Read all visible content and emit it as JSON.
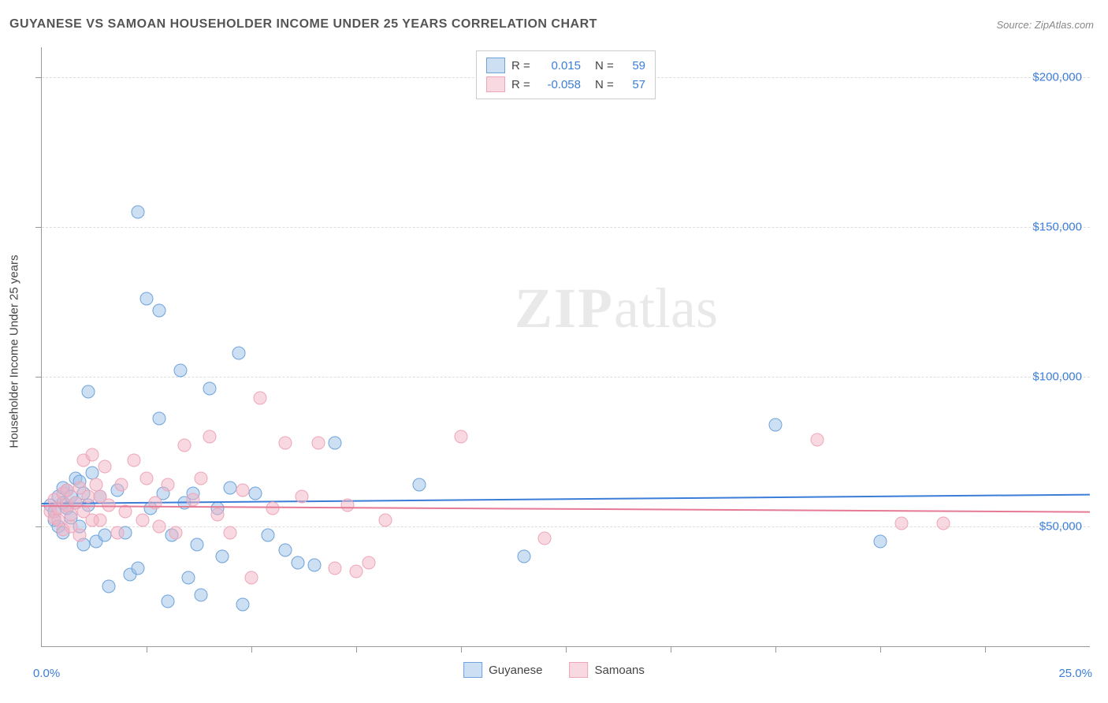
{
  "title": "GUYANESE VS SAMOAN HOUSEHOLDER INCOME UNDER 25 YEARS CORRELATION CHART",
  "source": "Source: ZipAtlas.com",
  "watermark_zip": "ZIP",
  "watermark_atlas": "atlas",
  "chart": {
    "type": "scatter",
    "background_color": "#ffffff",
    "grid_color": "#dddddd",
    "axis_color": "#999999",
    "y_axis_label": "Householder Income Under 25 years",
    "x_axis": {
      "min": 0.0,
      "max": 25.0,
      "label_left": "0.0%",
      "label_right": "25.0%",
      "label_color": "#3b7dd8",
      "tick_positions_pct": [
        10,
        20,
        30,
        40,
        50,
        60,
        70,
        80,
        90
      ]
    },
    "y_axis": {
      "min": 10000,
      "max": 210000,
      "label_color": "#3b7dd8",
      "ticks": [
        {
          "value": 50000,
          "label": "$50,000"
        },
        {
          "value": 100000,
          "label": "$100,000"
        },
        {
          "value": 150000,
          "label": "$150,000"
        },
        {
          "value": 200000,
          "label": "$200,000"
        }
      ]
    },
    "series": [
      {
        "name": "Guyanese",
        "fill_color": "rgba(155,192,232,0.5)",
        "stroke_color": "#6ea3db",
        "marker_size": 17,
        "trend_color": "#3b7dd8",
        "r_label": "R =",
        "r_value": "0.015",
        "n_label": "N =",
        "n_value": "59",
        "trend": {
          "y_at_xmin": 58000,
          "y_at_xmax": 61000
        },
        "points": [
          {
            "x": 0.2,
            "y": 57000
          },
          {
            "x": 0.3,
            "y": 55000
          },
          {
            "x": 0.3,
            "y": 52000
          },
          {
            "x": 0.4,
            "y": 60000
          },
          {
            "x": 0.4,
            "y": 50000
          },
          {
            "x": 0.5,
            "y": 63000
          },
          {
            "x": 0.5,
            "y": 58000
          },
          {
            "x": 0.5,
            "y": 48000
          },
          {
            "x": 0.6,
            "y": 62000
          },
          {
            "x": 0.6,
            "y": 56000
          },
          {
            "x": 0.7,
            "y": 60000
          },
          {
            "x": 0.7,
            "y": 53000
          },
          {
            "x": 0.8,
            "y": 66000
          },
          {
            "x": 0.8,
            "y": 58000
          },
          {
            "x": 0.9,
            "y": 65000
          },
          {
            "x": 0.9,
            "y": 50000
          },
          {
            "x": 1.0,
            "y": 61000
          },
          {
            "x": 1.0,
            "y": 44000
          },
          {
            "x": 1.1,
            "y": 95000
          },
          {
            "x": 1.1,
            "y": 57000
          },
          {
            "x": 1.2,
            "y": 68000
          },
          {
            "x": 1.3,
            "y": 45000
          },
          {
            "x": 1.4,
            "y": 60000
          },
          {
            "x": 1.5,
            "y": 47000
          },
          {
            "x": 1.6,
            "y": 30000
          },
          {
            "x": 1.8,
            "y": 62000
          },
          {
            "x": 2.0,
            "y": 48000
          },
          {
            "x": 2.1,
            "y": 34000
          },
          {
            "x": 2.3,
            "y": 155000
          },
          {
            "x": 2.3,
            "y": 36000
          },
          {
            "x": 2.5,
            "y": 126000
          },
          {
            "x": 2.6,
            "y": 56000
          },
          {
            "x": 2.8,
            "y": 122000
          },
          {
            "x": 2.8,
            "y": 86000
          },
          {
            "x": 2.9,
            "y": 61000
          },
          {
            "x": 3.0,
            "y": 25000
          },
          {
            "x": 3.1,
            "y": 47000
          },
          {
            "x": 3.3,
            "y": 102000
          },
          {
            "x": 3.4,
            "y": 58000
          },
          {
            "x": 3.5,
            "y": 33000
          },
          {
            "x": 3.6,
            "y": 61000
          },
          {
            "x": 3.7,
            "y": 44000
          },
          {
            "x": 3.8,
            "y": 27000
          },
          {
            "x": 4.0,
            "y": 96000
          },
          {
            "x": 4.2,
            "y": 56000
          },
          {
            "x": 4.3,
            "y": 40000
          },
          {
            "x": 4.5,
            "y": 63000
          },
          {
            "x": 4.7,
            "y": 108000
          },
          {
            "x": 4.8,
            "y": 24000
          },
          {
            "x": 5.1,
            "y": 61000
          },
          {
            "x": 5.4,
            "y": 47000
          },
          {
            "x": 5.8,
            "y": 42000
          },
          {
            "x": 6.1,
            "y": 38000
          },
          {
            "x": 6.5,
            "y": 37000
          },
          {
            "x": 7.0,
            "y": 78000
          },
          {
            "x": 9.0,
            "y": 64000
          },
          {
            "x": 11.5,
            "y": 40000
          },
          {
            "x": 17.5,
            "y": 84000
          },
          {
            "x": 20.0,
            "y": 45000
          }
        ]
      },
      {
        "name": "Samoans",
        "fill_color": "rgba(244,180,196,0.5)",
        "stroke_color": "#eda6b8",
        "marker_size": 17,
        "trend_color": "#e57a95",
        "r_label": "R =",
        "r_value": "-0.058",
        "n_label": "N =",
        "n_value": "57",
        "trend": {
          "y_at_xmin": 57000,
          "y_at_xmax": 55000
        },
        "points": [
          {
            "x": 0.2,
            "y": 55000
          },
          {
            "x": 0.3,
            "y": 53000
          },
          {
            "x": 0.3,
            "y": 59000
          },
          {
            "x": 0.4,
            "y": 52000
          },
          {
            "x": 0.4,
            "y": 56000
          },
          {
            "x": 0.5,
            "y": 61000
          },
          {
            "x": 0.5,
            "y": 49000
          },
          {
            "x": 0.6,
            "y": 57000
          },
          {
            "x": 0.6,
            "y": 62000
          },
          {
            "x": 0.7,
            "y": 54000
          },
          {
            "x": 0.7,
            "y": 50000
          },
          {
            "x": 0.8,
            "y": 58000
          },
          {
            "x": 0.9,
            "y": 63000
          },
          {
            "x": 0.9,
            "y": 47000
          },
          {
            "x": 1.0,
            "y": 72000
          },
          {
            "x": 1.0,
            "y": 55000
          },
          {
            "x": 1.1,
            "y": 60000
          },
          {
            "x": 1.2,
            "y": 74000
          },
          {
            "x": 1.3,
            "y": 64000
          },
          {
            "x": 1.4,
            "y": 52000
          },
          {
            "x": 1.5,
            "y": 70000
          },
          {
            "x": 1.6,
            "y": 57000
          },
          {
            "x": 1.8,
            "y": 48000
          },
          {
            "x": 1.9,
            "y": 64000
          },
          {
            "x": 2.0,
            "y": 55000
          },
          {
            "x": 2.2,
            "y": 72000
          },
          {
            "x": 2.4,
            "y": 52000
          },
          {
            "x": 2.5,
            "y": 66000
          },
          {
            "x": 2.7,
            "y": 58000
          },
          {
            "x": 2.8,
            "y": 50000
          },
          {
            "x": 3.0,
            "y": 64000
          },
          {
            "x": 3.2,
            "y": 48000
          },
          {
            "x": 3.4,
            "y": 77000
          },
          {
            "x": 3.6,
            "y": 59000
          },
          {
            "x": 3.8,
            "y": 66000
          },
          {
            "x": 4.0,
            "y": 80000
          },
          {
            "x": 4.2,
            "y": 54000
          },
          {
            "x": 4.5,
            "y": 48000
          },
          {
            "x": 4.8,
            "y": 62000
          },
          {
            "x": 5.0,
            "y": 33000
          },
          {
            "x": 5.2,
            "y": 93000
          },
          {
            "x": 5.5,
            "y": 56000
          },
          {
            "x": 5.8,
            "y": 78000
          },
          {
            "x": 6.2,
            "y": 60000
          },
          {
            "x": 6.6,
            "y": 78000
          },
          {
            "x": 7.0,
            "y": 36000
          },
          {
            "x": 7.3,
            "y": 57000
          },
          {
            "x": 7.5,
            "y": 35000
          },
          {
            "x": 7.8,
            "y": 38000
          },
          {
            "x": 8.2,
            "y": 52000
          },
          {
            "x": 10.0,
            "y": 80000
          },
          {
            "x": 12.0,
            "y": 46000
          },
          {
            "x": 18.5,
            "y": 79000
          },
          {
            "x": 20.5,
            "y": 51000
          },
          {
            "x": 21.5,
            "y": 51000
          },
          {
            "x": 1.2,
            "y": 52000
          },
          {
            "x": 1.4,
            "y": 60000
          }
        ]
      }
    ]
  }
}
